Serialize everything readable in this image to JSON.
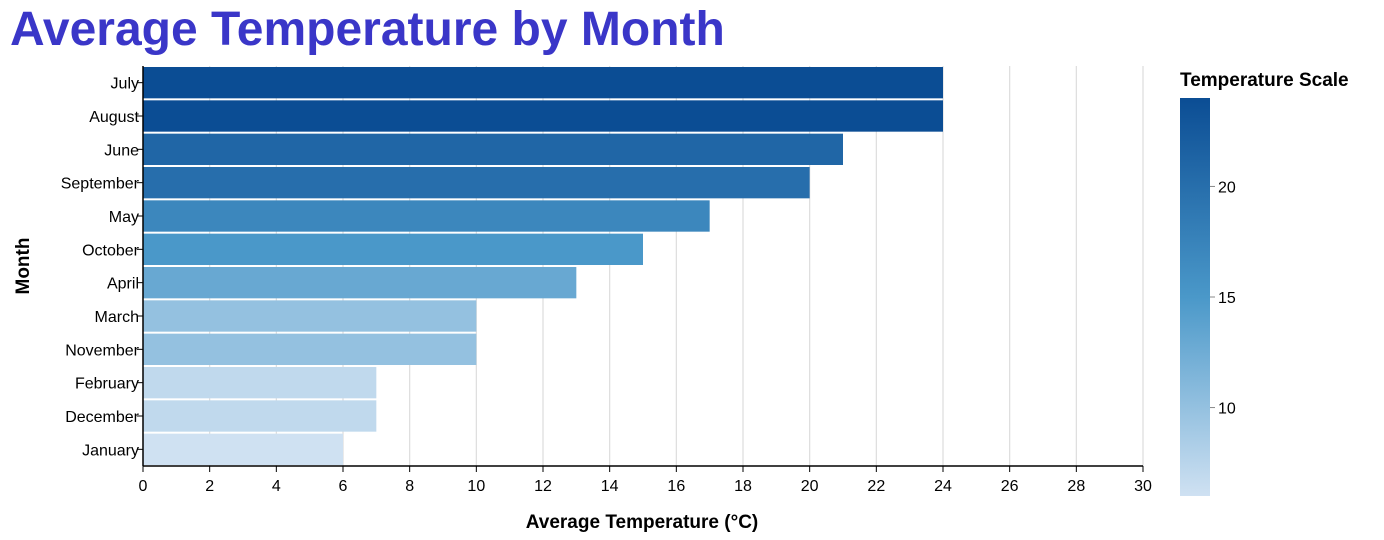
{
  "chart_data": {
    "type": "bar",
    "orientation": "horizontal",
    "title": "Average Temperature by Month",
    "xlabel": "Average Temperature (°C)",
    "ylabel": "Month",
    "xlim": [
      0,
      30
    ],
    "x_ticks": [
      0,
      2,
      4,
      6,
      8,
      10,
      12,
      14,
      16,
      18,
      20,
      22,
      24,
      26,
      28,
      30
    ],
    "grid": true,
    "categories": [
      "July",
      "August",
      "June",
      "September",
      "May",
      "October",
      "April",
      "March",
      "November",
      "February",
      "December",
      "January"
    ],
    "values": [
      24,
      24,
      21,
      20,
      17,
      15,
      13,
      10,
      10,
      7,
      7,
      6
    ],
    "legend": {
      "title": "Temperature Scale",
      "placement": "right",
      "range": [
        6,
        24
      ],
      "ticks": [
        10,
        15,
        20
      ]
    },
    "colors": {
      "title": "#3a36c8",
      "scale_low": "#cfe1f2",
      "scale_mid": "#4a98c9",
      "scale_high": "#0b4d94",
      "grid": "#dddddd",
      "axis": "#000000"
    }
  }
}
